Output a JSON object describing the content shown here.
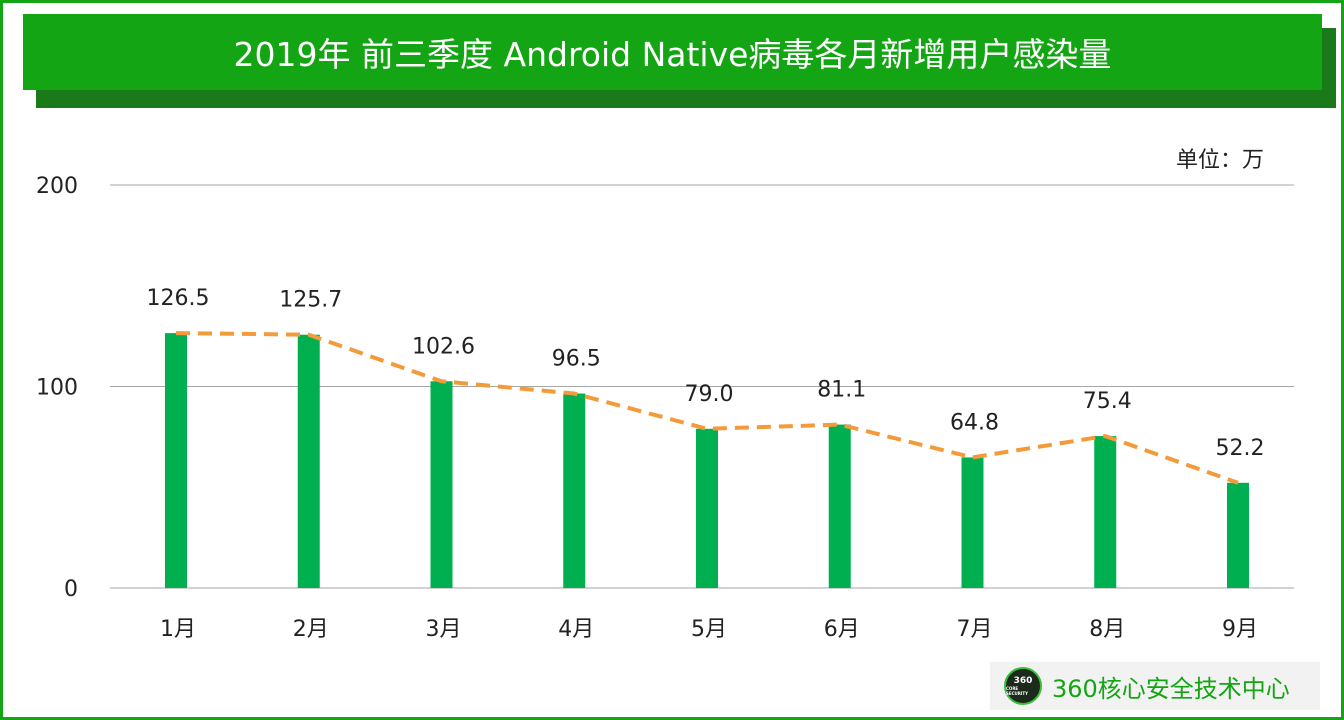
{
  "header": {
    "title": "2019年 前三季度 Android Native病毒各月新增用户感染量"
  },
  "unit_label": "单位：万",
  "watermark": {
    "logo_text": "360",
    "logo_subtext": "CORE SECURITY",
    "brand": "360核心安全技术中心"
  },
  "colors": {
    "title_bg": "#14a514",
    "title_shadow": "#1a7a1a",
    "bar": "#00b050",
    "trend_line": "#f39a3b",
    "grid": "#a6a6a6"
  },
  "chart_data": {
    "type": "bar",
    "title": "2019年 前三季度 Android Native病毒各月新增用户感染量",
    "categories": [
      "1月",
      "2月",
      "3月",
      "4月",
      "5月",
      "6月",
      "7月",
      "8月",
      "9月"
    ],
    "values": [
      126.5,
      125.7,
      102.6,
      96.5,
      79.0,
      81.1,
      64.8,
      75.4,
      52.2
    ],
    "value_labels": [
      "126.5",
      "125.7",
      "102.6",
      "96.5",
      "79.0",
      "81.1",
      "64.8",
      "75.4",
      "52.2"
    ],
    "overlay_line": "dashed trend through bar tops",
    "ylim": [
      0,
      200
    ],
    "yticks": [
      0,
      100,
      200
    ],
    "ytick_labels": [
      "0",
      "100",
      "200"
    ],
    "xlabel": "",
    "ylabel": "",
    "grid": true
  }
}
